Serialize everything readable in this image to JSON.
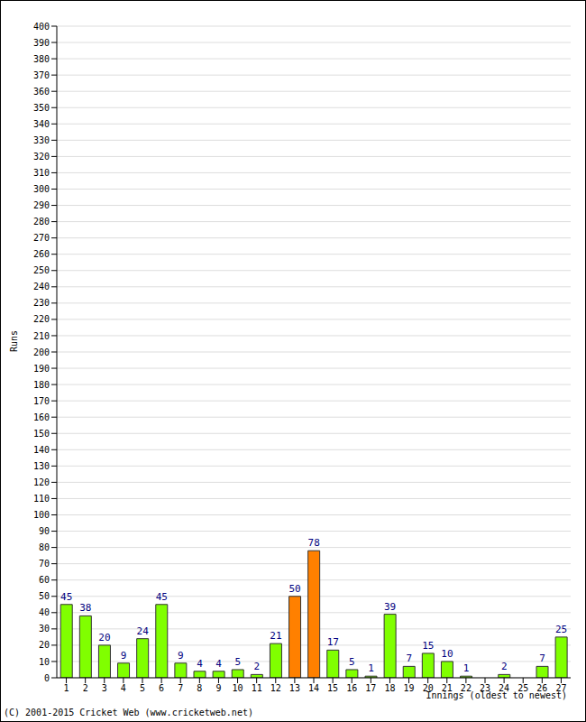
{
  "chart_data": {
    "type": "bar",
    "y_label": "Runs",
    "x_label": "Innings (oldest to newest)",
    "annotations": [
      "(C) 2001-2015 Cricket Web (www.cricketweb.net)"
    ],
    "categories": [
      "1",
      "2",
      "3",
      "4",
      "5",
      "6",
      "7",
      "8",
      "9",
      "10",
      "11",
      "12",
      "13",
      "14",
      "15",
      "16",
      "17",
      "18",
      "19",
      "20",
      "21",
      "22",
      "23",
      "24",
      "25",
      "26",
      "27"
    ],
    "values": [
      45,
      38,
      20,
      9,
      24,
      45,
      9,
      4,
      4,
      5,
      2,
      21,
      50,
      78,
      17,
      5,
      1,
      39,
      7,
      15,
      10,
      1,
      0,
      2,
      0,
      7,
      25
    ],
    "colors": [
      "#80ff00",
      "#80ff00",
      "#80ff00",
      "#80ff00",
      "#80ff00",
      "#80ff00",
      "#80ff00",
      "#80ff00",
      "#80ff00",
      "#80ff00",
      "#80ff00",
      "#80ff00",
      "#ff8000",
      "#ff8000",
      "#80ff00",
      "#80ff00",
      "#80ff00",
      "#80ff00",
      "#80ff00",
      "#80ff00",
      "#80ff00",
      "#80ff00",
      "#80ff00",
      "#80ff00",
      "#80ff00",
      "#80ff00",
      "#80ff00"
    ],
    "ylim": [
      0,
      400
    ],
    "yticks": [
      0,
      10,
      20,
      30,
      40,
      50,
      60,
      70,
      80,
      90,
      100,
      110,
      120,
      130,
      140,
      150,
      160,
      170,
      180,
      190,
      200,
      210,
      220,
      230,
      240,
      250,
      260,
      270,
      280,
      290,
      300,
      310,
      320,
      330,
      340,
      350,
      360,
      370,
      380,
      390,
      400
    ],
    "grid": true,
    "data_labels": true
  }
}
